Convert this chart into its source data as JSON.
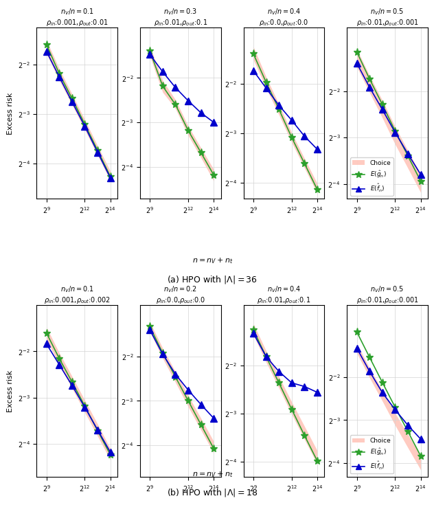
{
  "row_a": {
    "title": "(a) HPO with $|\\Lambda| = 36$",
    "subplots": [
      {
        "nv_n": "0.1",
        "rho": "$\\rho_{in}$:0.001,$\\rho_{out}$:0.01",
        "x": [
          512,
          1024,
          2048,
          4096,
          8192,
          16384
        ],
        "green_y": [
          0.33,
          0.22,
          0.155,
          0.108,
          0.075,
          0.052
        ],
        "blue_y": [
          0.3,
          0.21,
          0.148,
          0.105,
          0.073,
          0.051
        ],
        "band_lo": [
          0.29,
          0.2,
          0.142,
          0.1,
          0.07,
          0.049
        ],
        "band_hi": [
          0.35,
          0.235,
          0.165,
          0.115,
          0.08,
          0.056
        ],
        "ylim": [
          0.038,
          0.42
        ],
        "has_legend": false
      },
      {
        "nv_n": "0.3",
        "rho": "$\\rho_{in}$:0.01,$\\rho_{out}$:0.1",
        "x": [
          512,
          1024,
          2048,
          4096,
          8192,
          16384
        ],
        "green_y": [
          0.38,
          0.22,
          0.165,
          0.11,
          0.078,
          0.055
        ],
        "blue_y": [
          0.36,
          0.275,
          0.215,
          0.175,
          0.145,
          0.125
        ],
        "band_lo": [
          0.35,
          0.2,
          0.155,
          0.102,
          0.072,
          0.05
        ],
        "band_hi": [
          0.41,
          0.24,
          0.178,
          0.118,
          0.084,
          0.06
        ],
        "ylim": [
          0.038,
          0.55
        ],
        "has_legend": false
      },
      {
        "nv_n": "0.4",
        "rho": "$\\rho_{in}$:0.0,$\\rho_{out}$:0.0",
        "x": [
          512,
          1024,
          2048,
          4096,
          8192,
          16384
        ],
        "green_y": [
          0.38,
          0.255,
          0.175,
          0.118,
          0.082,
          0.057
        ],
        "blue_y": [
          0.3,
          0.235,
          0.185,
          0.15,
          0.12,
          0.1
        ],
        "band_lo": [
          0.35,
          0.235,
          0.162,
          0.11,
          0.077,
          0.054
        ],
        "band_hi": [
          0.42,
          0.275,
          0.188,
          0.126,
          0.088,
          0.062
        ],
        "ylim": [
          0.05,
          0.55
        ],
        "has_legend": false
      },
      {
        "nv_n": "0.5",
        "rho": "$\\rho_{in}$:0.01,$\\rho_{out}$:0.001",
        "x": [
          512,
          1024,
          2048,
          4096,
          8192,
          16384
        ],
        "green_y": [
          0.45,
          0.3,
          0.205,
          0.138,
          0.095,
          0.065
        ],
        "blue_y": [
          0.38,
          0.265,
          0.19,
          0.135,
          0.098,
          0.072
        ],
        "band_lo": [
          0.36,
          0.245,
          0.168,
          0.113,
          0.079,
          0.055
        ],
        "band_hi": [
          0.47,
          0.315,
          0.218,
          0.147,
          0.103,
          0.072
        ],
        "ylim": [
          0.05,
          0.65
        ],
        "has_legend": true
      }
    ]
  },
  "row_b": {
    "title": "(b) HPO with $|\\Lambda| = 18$",
    "subplots": [
      {
        "nv_n": "0.1",
        "rho": "$\\rho_{in}$:0.001,$\\rho_{out}$:0.002",
        "x": [
          512,
          1024,
          2048,
          4096,
          8192,
          16384
        ],
        "green_y": [
          0.33,
          0.225,
          0.158,
          0.11,
          0.076,
          0.053
        ],
        "blue_y": [
          0.28,
          0.205,
          0.15,
          0.108,
          0.077,
          0.055
        ],
        "band_lo": [
          0.3,
          0.205,
          0.144,
          0.1,
          0.07,
          0.049
        ],
        "band_hi": [
          0.36,
          0.245,
          0.172,
          0.12,
          0.084,
          0.058
        ],
        "ylim": [
          0.038,
          0.5
        ],
        "has_legend": false
      },
      {
        "nv_n": "0.2",
        "rho": "$\\rho_{in}$:0.0,$\\rho_{out}$:0.0",
        "x": [
          512,
          1024,
          2048,
          4096,
          8192,
          16384
        ],
        "green_y": [
          0.4,
          0.265,
          0.182,
          0.125,
          0.086,
          0.059
        ],
        "blue_y": [
          0.38,
          0.26,
          0.19,
          0.148,
          0.118,
          0.095
        ],
        "band_lo": [
          0.37,
          0.244,
          0.167,
          0.114,
          0.079,
          0.055
        ],
        "band_hi": [
          0.43,
          0.286,
          0.197,
          0.136,
          0.095,
          0.066
        ],
        "ylim": [
          0.038,
          0.56
        ],
        "has_legend": false
      },
      {
        "nv_n": "0.4",
        "rho": "$\\rho_{in}$:0.01,$\\rho_{out}$:0.1",
        "x": [
          512,
          1024,
          2048,
          4096,
          8192,
          16384
        ],
        "green_y": [
          0.42,
          0.285,
          0.195,
          0.133,
          0.091,
          0.063
        ],
        "blue_y": [
          0.4,
          0.285,
          0.23,
          0.195,
          0.185,
          0.17
        ],
        "band_lo": [
          0.39,
          0.263,
          0.181,
          0.124,
          0.086,
          0.06
        ],
        "band_hi": [
          0.46,
          0.31,
          0.214,
          0.148,
          0.104,
          0.073
        ],
        "ylim": [
          0.05,
          0.6
        ],
        "has_legend": false
      },
      {
        "nv_n": "0.5",
        "rho": "$\\rho_{in}$:0.01,$\\rho_{out}$:0.001",
        "x": [
          512,
          1024,
          2048,
          4096,
          8192,
          16384
        ],
        "green_y": [
          0.52,
          0.345,
          0.23,
          0.154,
          0.104,
          0.07
        ],
        "blue_y": [
          0.4,
          0.275,
          0.195,
          0.148,
          0.115,
          0.092
        ],
        "band_lo": [
          0.37,
          0.248,
          0.17,
          0.115,
          0.08,
          0.056
        ],
        "band_hi": [
          0.43,
          0.29,
          0.202,
          0.14,
          0.099,
          0.07
        ],
        "ylim": [
          0.05,
          0.8
        ],
        "has_legend": true
      }
    ]
  },
  "green_color": "#2ca02c",
  "blue_color": "#0000cc",
  "band_color": "#ffb0a0",
  "band_alpha": 0.65,
  "xlabel": "$n = n_V + n_t$",
  "ylabel": "Excess risk",
  "yticks": [
    0.0625,
    0.125,
    0.25
  ],
  "ytick_labels_a": [
    "$2^{-4}$",
    "$2^{-3}$",
    "$2^{-2}$"
  ],
  "ytick_labels_b": [
    "$2^{-4}$",
    "$2^{-3}$",
    "$2^{-2}$"
  ],
  "xticks": [
    512,
    4096,
    16384
  ],
  "xtick_labels": [
    "$2^{9}$",
    "$2^{12}$",
    "$2^{14}$"
  ]
}
